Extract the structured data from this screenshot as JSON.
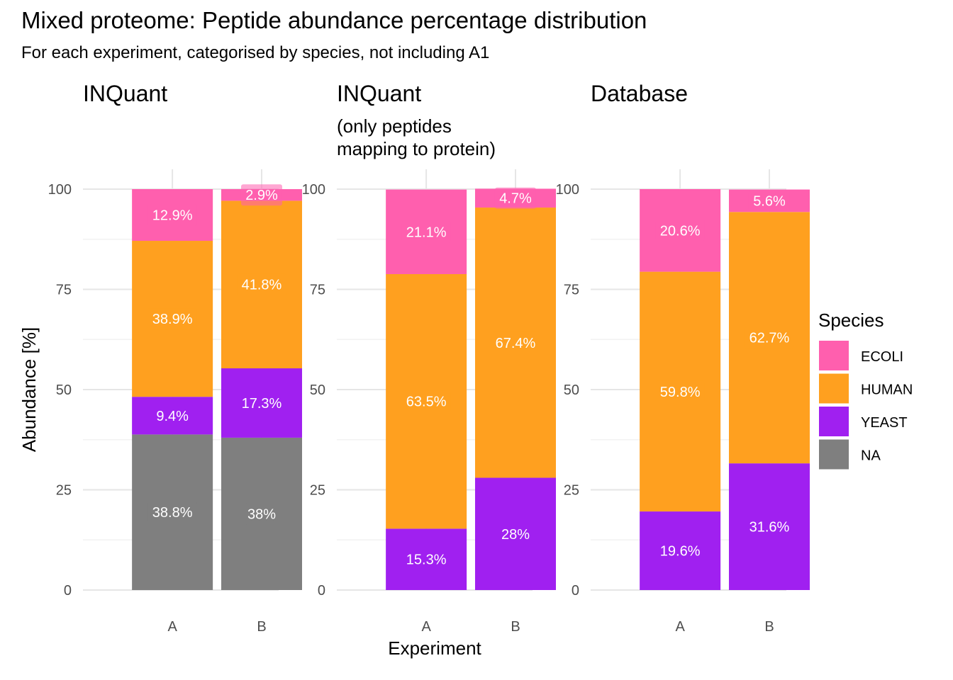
{
  "title": "Mixed proteome: Peptide abundance percentage distribution",
  "subtitle": "For each experiment, categorised by species, not including A1",
  "chart_data": {
    "type": "bar",
    "stacked": true,
    "categories": [
      "A",
      "B"
    ],
    "xlabel": "Experiment",
    "ylabel": "Abundance [%]",
    "ylim": [
      0,
      100
    ],
    "yticks": [
      0,
      25,
      50,
      75,
      100
    ],
    "grid": true,
    "legend": {
      "title": "Species",
      "position": "right",
      "items": [
        {
          "label": "ECOLI",
          "color": "#FF5FAE"
        },
        {
          "label": "HUMAN",
          "color": "#FFA01F"
        },
        {
          "label": "YEAST",
          "color": "#A020F0"
        },
        {
          "label": "NA",
          "color": "#7F7F7F"
        }
      ]
    },
    "panels": [
      {
        "title": "INQuant",
        "subtitle": "",
        "series": [
          {
            "name": "NA",
            "values": [
              38.8,
              38
            ]
          },
          {
            "name": "YEAST",
            "values": [
              9.4,
              17.3
            ]
          },
          {
            "name": "HUMAN",
            "values": [
              38.9,
              41.8
            ]
          },
          {
            "name": "ECOLI",
            "values": [
              12.9,
              2.9
            ]
          }
        ],
        "labels": [
          [
            "38.8%",
            "38%"
          ],
          [
            "9.4%",
            "17.3%"
          ],
          [
            "38.9%",
            "41.8%"
          ],
          [
            "12.9%",
            "2.9%"
          ]
        ]
      },
      {
        "title": "INQuant",
        "subtitle": "(only peptides\nmapping to protein)",
        "series": [
          {
            "name": "NA",
            "values": [
              0,
              0
            ]
          },
          {
            "name": "YEAST",
            "values": [
              15.3,
              28
            ]
          },
          {
            "name": "HUMAN",
            "values": [
              63.5,
              67.4
            ]
          },
          {
            "name": "ECOLI",
            "values": [
              21.1,
              4.7
            ]
          }
        ],
        "labels": [
          [
            "",
            ""
          ],
          [
            "15.3%",
            "28%"
          ],
          [
            "63.5%",
            "67.4%"
          ],
          [
            "21.1%",
            "4.7%"
          ]
        ]
      },
      {
        "title": "Database",
        "subtitle": "",
        "series": [
          {
            "name": "NA",
            "values": [
              0,
              0
            ]
          },
          {
            "name": "YEAST",
            "values": [
              19.6,
              31.6
            ]
          },
          {
            "name": "HUMAN",
            "values": [
              59.8,
              62.7
            ]
          },
          {
            "name": "ECOLI",
            "values": [
              20.6,
              5.6
            ]
          }
        ],
        "labels": [
          [
            "",
            ""
          ],
          [
            "19.6%",
            "31.6%"
          ],
          [
            "59.8%",
            "62.7%"
          ],
          [
            "20.6%",
            "5.6%"
          ]
        ]
      }
    ]
  }
}
